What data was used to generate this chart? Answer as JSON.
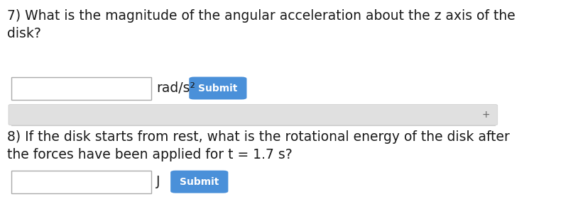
{
  "bg_color": "#ffffff",
  "question7_superscript": "7)",
  "question7_text": "What is the magnitude of the angular acceleration about the z axis of the\ndisk?",
  "unit7": "rad/s²",
  "submit_btn_color": "#4a90d9",
  "submit_btn_text_color": "#ffffff",
  "submit_text": "Submit",
  "scrollbar_bg": "#e0e0e0",
  "question8_superscript": "8)",
  "question8_text": "If the disk starts from rest, what is the rotational energy of the disk after\nthe forces have been applied for t = 1.7 s?",
  "unit8": "J",
  "main_text_color": "#1a1a1a",
  "font_size_question": 13.5,
  "font_size_unit": 13.5,
  "font_size_button": 10,
  "border_color": "#aaaaaa"
}
